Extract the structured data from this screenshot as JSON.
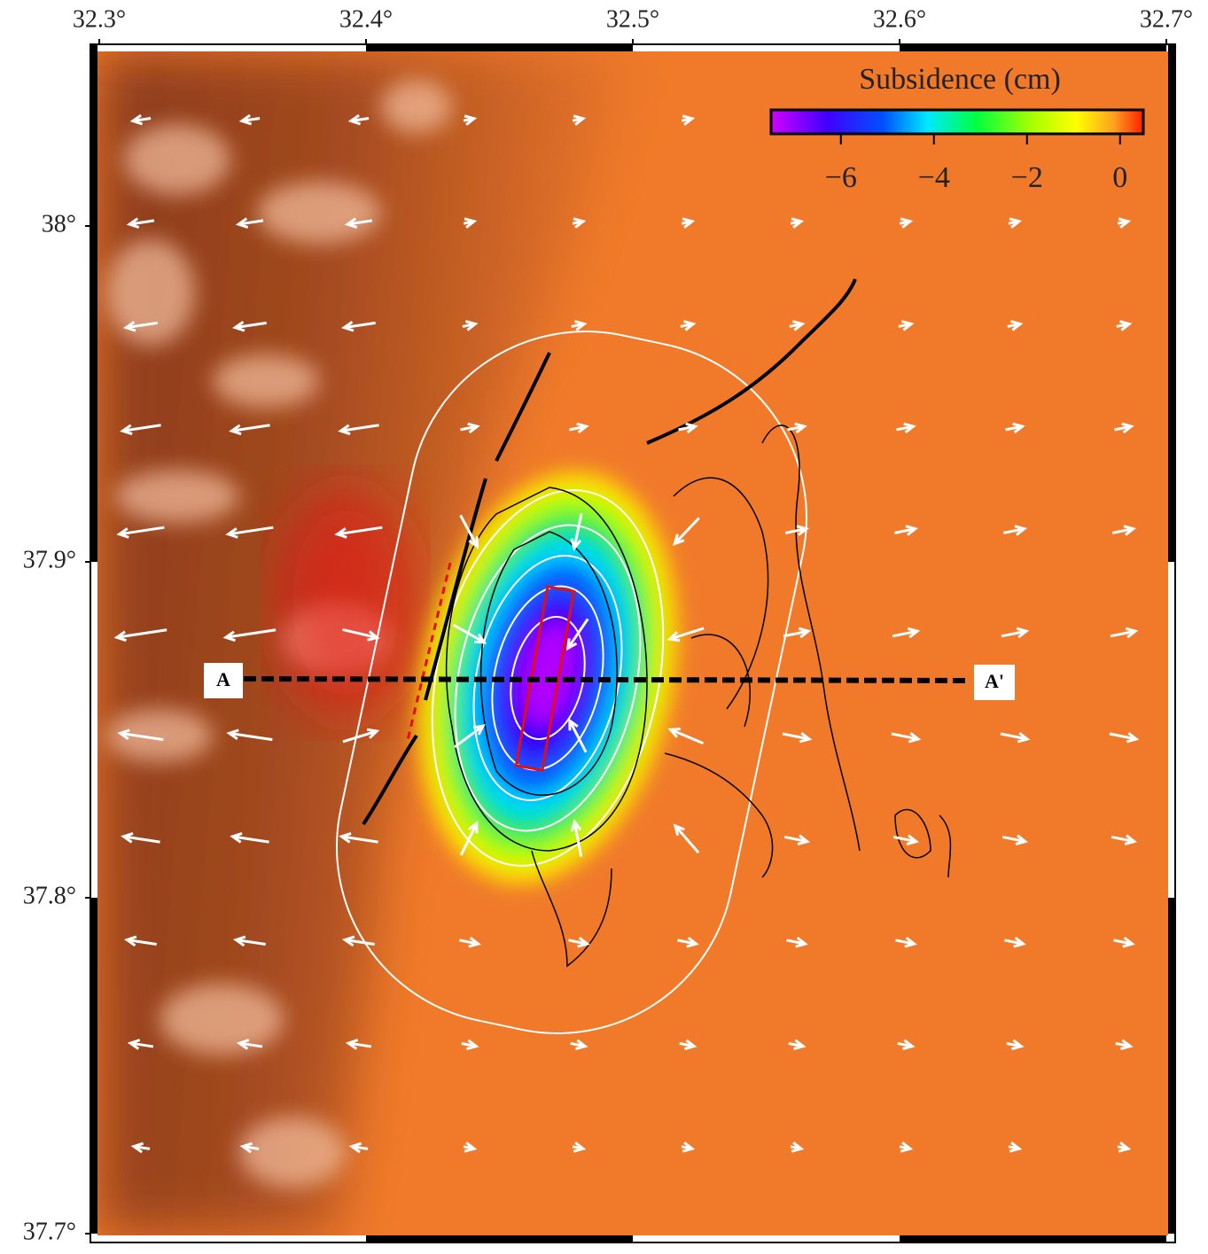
{
  "map": {
    "xticks": [
      {
        "value": 32.3,
        "label": "32.3°"
      },
      {
        "value": 32.4,
        "label": "32.4°"
      },
      {
        "value": 32.5,
        "label": "32.5°"
      },
      {
        "value": 32.6,
        "label": "32.6°"
      },
      {
        "value": 32.7,
        "label": "32.7°"
      }
    ],
    "yticks": [
      {
        "value": 38.0,
        "label": "38°"
      },
      {
        "value": 37.9,
        "label": "37.9°"
      },
      {
        "value": 37.8,
        "label": "37.8°"
      },
      {
        "value": 37.7,
        "label": "37.7°"
      }
    ],
    "colorbar": {
      "title": "Subsidence (cm)",
      "lim": [
        -7.5,
        0.5
      ],
      "ticks": [
        {
          "value": -6,
          "label": "−6"
        },
        {
          "value": -4,
          "label": "−4"
        },
        {
          "value": -2,
          "label": "−2"
        },
        0
      ]
    },
    "profile": {
      "start_label": "A",
      "end_label": "A'"
    }
  }
}
